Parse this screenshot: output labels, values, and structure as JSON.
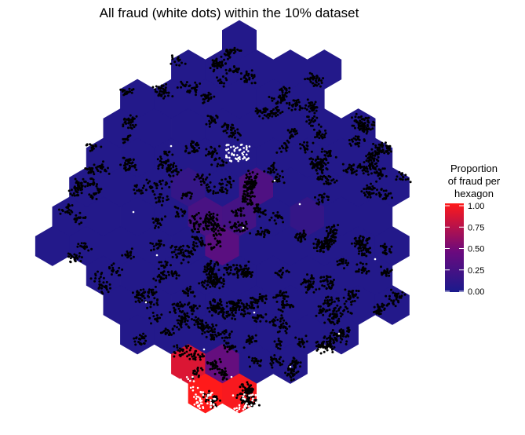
{
  "chart_data": {
    "type": "hexbin",
    "title": "All fraud (white dots) within the 10% dataset",
    "legend": {
      "title_lines": [
        "Proportion",
        "of fraud per",
        "hexagon"
      ],
      "position": "right",
      "ticks": [
        "1.00",
        "0.75",
        "0.50",
        "0.25",
        "0.00"
      ],
      "tick_values": [
        1.0,
        0.75,
        0.5,
        0.25,
        0.0
      ],
      "range": [
        0,
        1
      ],
      "colors": {
        "low": "#1a1a8c",
        "mid": "#7a0a7a",
        "high": "#ff1a1a"
      }
    },
    "point_colors": {
      "normal": "#000000",
      "fraud": "#ffffff"
    },
    "grid": false,
    "axes_visible": false
  }
}
